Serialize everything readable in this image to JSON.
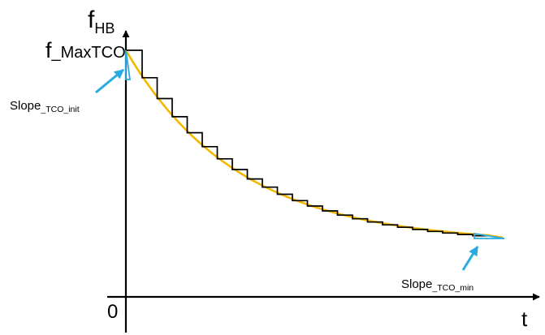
{
  "labels": {
    "y_axis_main": "f",
    "y_axis_sub": "HB",
    "x_axis": "t",
    "origin": "0",
    "max_value_main": "f",
    "max_value_sub": "_MaxTCO",
    "slope_init_main": "Slope",
    "slope_init_sub": "_TCO_init",
    "slope_min_main": "Slope",
    "slope_min_sub": "_TCO_min"
  },
  "colors": {
    "axes": "#000000",
    "staircase": "#000000",
    "decay_curve": "#f5b800",
    "slope_marker": "#29abe2",
    "arrow": "#29abe2"
  }
}
